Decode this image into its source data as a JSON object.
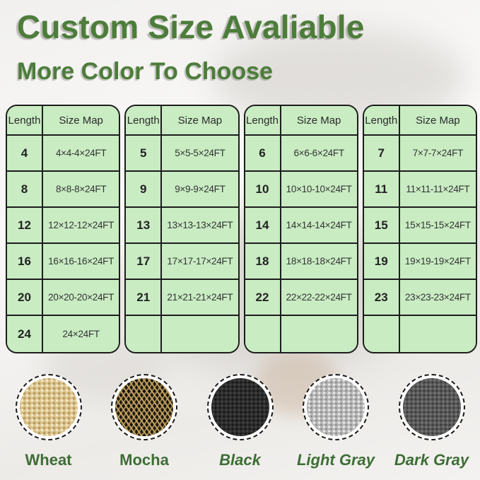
{
  "header": {
    "title": "Custom Size Avaliable",
    "subtitle": "More Color To Choose"
  },
  "tables": [
    {
      "columns": [
        "Length",
        "Size Map"
      ],
      "rows": [
        {
          "len": "4",
          "size": "4×4-4×24FT"
        },
        {
          "len": "8",
          "size": "8×8-8×24FT"
        },
        {
          "len": "12",
          "size": "12×12-12×24FT"
        },
        {
          "len": "16",
          "size": "16×16-16×24FT"
        },
        {
          "len": "20",
          "size": "20×20-20×24FT"
        },
        {
          "len": "24",
          "size": "24×24FT"
        }
      ]
    },
    {
      "columns": [
        "Length",
        "Size Map"
      ],
      "rows": [
        {
          "len": "5",
          "size": "5×5-5×24FT"
        },
        {
          "len": "9",
          "size": "9×9-9×24FT"
        },
        {
          "len": "13",
          "size": "13×13-13×24FT"
        },
        {
          "len": "17",
          "size": "17×17-17×24FT"
        },
        {
          "len": "21",
          "size": "21×21-21×24FT"
        },
        {
          "len": "",
          "size": ""
        }
      ]
    },
    {
      "columns": [
        "Length",
        "Size Map"
      ],
      "rows": [
        {
          "len": "6",
          "size": "6×6-6×24FT"
        },
        {
          "len": "10",
          "size": "10×10-10×24FT"
        },
        {
          "len": "14",
          "size": "14×14-14×24FT"
        },
        {
          "len": "18",
          "size": "18×18-18×24FT"
        },
        {
          "len": "22",
          "size": "22×22-22×24FT"
        },
        {
          "len": "",
          "size": ""
        }
      ]
    },
    {
      "columns": [
        "Length",
        "Size Map"
      ],
      "rows": [
        {
          "len": "7",
          "size": "7×7-7×24FT"
        },
        {
          "len": "11",
          "size": "11×11-11×24FT"
        },
        {
          "len": "15",
          "size": "15×15-15×24FT"
        },
        {
          "len": "19",
          "size": "19×19-19×24FT"
        },
        {
          "len": "23",
          "size": "23×23-23×24FT"
        },
        {
          "len": "",
          "size": ""
        }
      ]
    }
  ],
  "swatches": [
    {
      "label": "Wheat",
      "color": "#dcc48c"
    },
    {
      "label": "Mocha",
      "color": "#221d13",
      "accent_color": "#caa863"
    },
    {
      "label": "Black",
      "color": "#2c2c2c"
    },
    {
      "label": "Light Gray",
      "color": "#b7b7b7"
    },
    {
      "label": "Dark Gray",
      "color": "#595959"
    }
  ],
  "colors": {
    "heading_green": "#4c7d3a",
    "label_green": "#3d6e35",
    "table_cell_green": "#c9ecc3",
    "table_border": "#1d1d1d"
  }
}
